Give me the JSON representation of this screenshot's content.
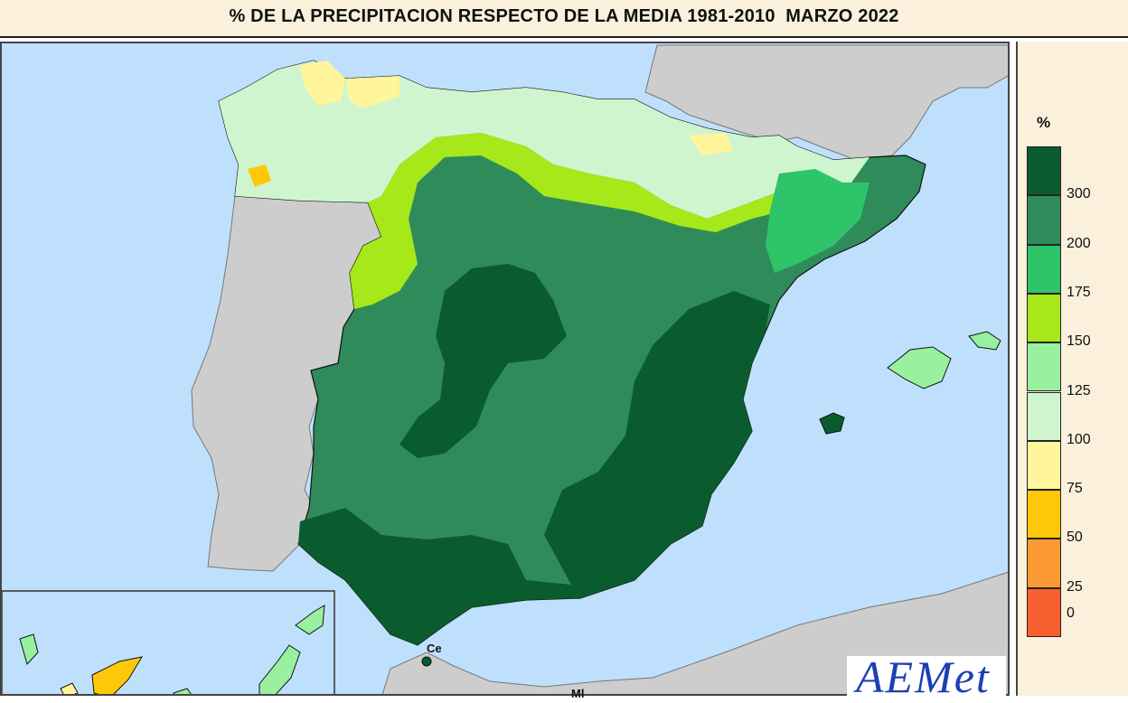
{
  "title": "% DE LA PRECIPITACION RESPECTO DE LA MEDIA 1981-2010  MARZO 2022",
  "legend": {
    "unit": "%",
    "bins": [
      {
        "label": "300",
        "color": "#0a5c2e"
      },
      {
        "label": "200",
        "color": "#2f8c5a"
      },
      {
        "label": "175",
        "color": "#2ec46a"
      },
      {
        "label": "150",
        "color": "#a6e81a"
      },
      {
        "label": "125",
        "color": "#99f09f"
      },
      {
        "label": "100",
        "color": "#cff5cf"
      },
      {
        "label": "75",
        "color": "#fff59a"
      },
      {
        "label": "50",
        "color": "#fdc80a"
      },
      {
        "label": "25",
        "color": "#fb9a32"
      },
      {
        "label": "0",
        "color": "#f85f2f"
      }
    ],
    "bottom_color": "#f85f2f"
  },
  "map_labels": {
    "ceuta": "Ce",
    "melilla": "Ml"
  },
  "logo": "AEMet",
  "colors": {
    "sea": "#bfe0fc",
    "land_outside": "#cdcdcd",
    "border": "#111111"
  }
}
